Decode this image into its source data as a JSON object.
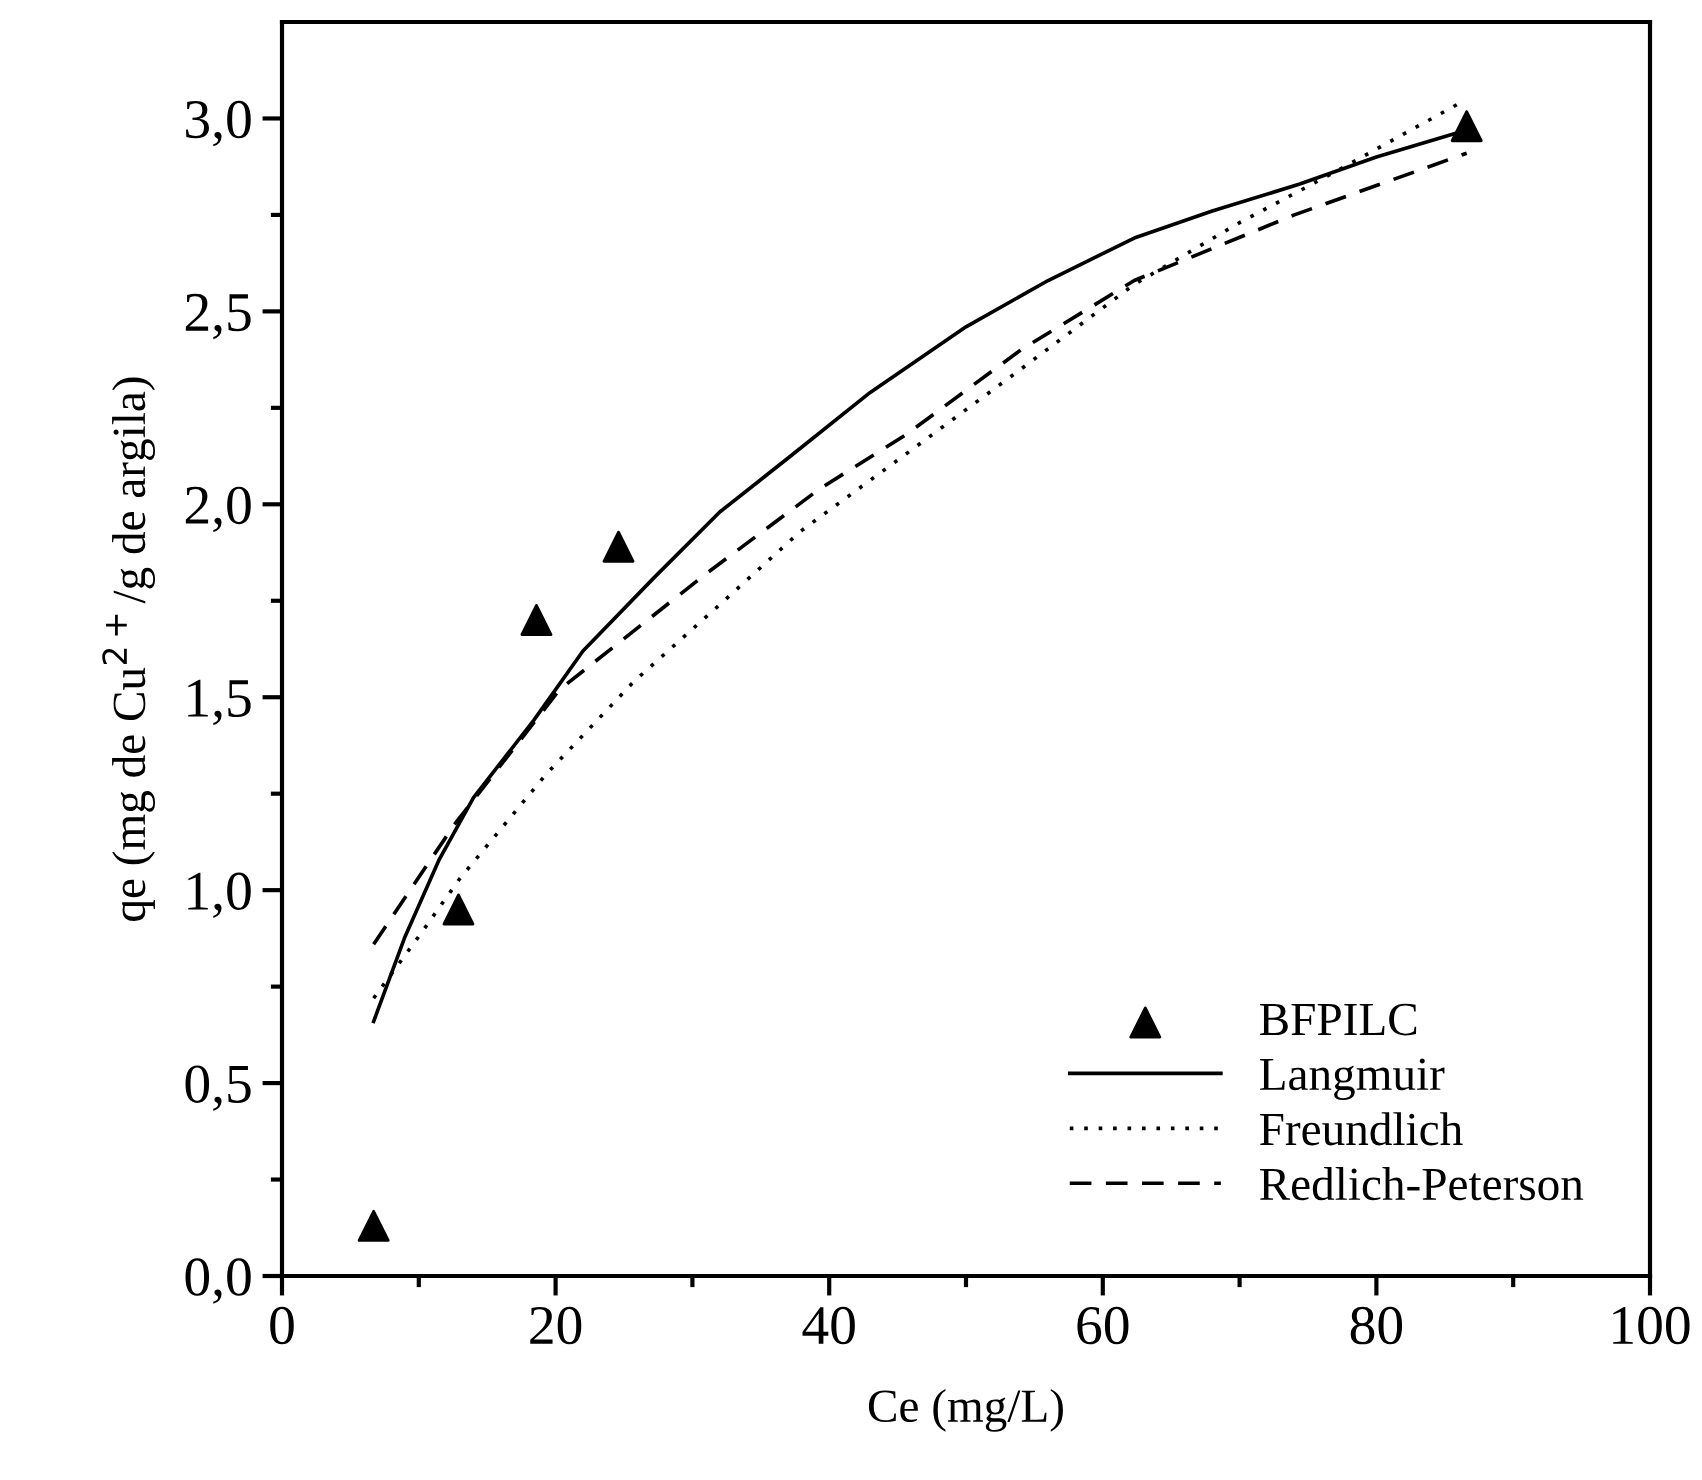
{
  "chart_data": {
    "type": "scatter",
    "xlabel": "Ce (mg/L)",
    "ylabel": "qe (mg de Cu$^{2+}$/g de argila)",
    "xlim": [
      0,
      100
    ],
    "ylim": [
      0,
      3.25
    ],
    "xticks": [
      0,
      {
        "value": 10,
        "label": null
      },
      20,
      {
        "value": 30,
        "label": null
      },
      40,
      {
        "value": 50,
        "label": null
      },
      60,
      {
        "value": 70,
        "label": null
      },
      80,
      {
        "value": 90,
        "label": null
      },
      100
    ],
    "yticks": [
      {
        "value": 0,
        "label": "0,0"
      },
      {
        "value": 0.25,
        "label": null
      },
      {
        "value": 0.5,
        "label": "0,5"
      },
      {
        "value": 0.75,
        "label": null
      },
      {
        "value": 1.0,
        "label": "1,0"
      },
      {
        "value": 1.25,
        "label": null
      },
      {
        "value": 1.5,
        "label": "1,5"
      },
      {
        "value": 1.75,
        "label": null
      },
      {
        "value": 2.0,
        "label": "2,0"
      },
      {
        "value": 2.25,
        "label": null
      },
      {
        "value": 2.5,
        "label": "2,5"
      },
      {
        "value": 2.75,
        "label": null
      },
      {
        "value": 3.0,
        "label": "3,0"
      }
    ],
    "grid": false,
    "legend": "bottom right",
    "series": [
      {
        "name": "BFPILC",
        "marker": "triangle",
        "color": "#000000",
        "x": [
          6.7,
          12.9,
          18.6,
          24.6,
          86.6
        ],
        "values": [
          0.13,
          0.95,
          1.7,
          1.89,
          2.98
        ]
      },
      {
        "name": "Langmuir",
        "type": "line",
        "line_style": "solid",
        "marker": "none",
        "color": "#000000",
        "x": [
          6.7,
          9,
          11.5,
          14,
          18.4,
          22,
          27.2,
          32,
          37,
          43,
          50,
          56,
          62.3,
          68,
          74.4,
          80,
          86.6
        ],
        "values": [
          0.66,
          0.88,
          1.08,
          1.24,
          1.44,
          1.62,
          1.81,
          1.98,
          2.12,
          2.29,
          2.46,
          2.58,
          2.69,
          2.76,
          2.83,
          2.9,
          2.97
        ]
      },
      {
        "name": "Freundlich",
        "type": "line",
        "line_style": "dotted",
        "marker": "none",
        "color": "#000000",
        "x": [
          6.7,
          10,
          13,
          19.3,
          25.7,
          32,
          37.9,
          45.6,
          54,
          62.3,
          70,
          76.9,
          86.1
        ],
        "values": [
          0.72,
          0.88,
          1.03,
          1.3,
          1.54,
          1.74,
          1.93,
          2.13,
          2.35,
          2.57,
          2.73,
          2.86,
          3.04
        ]
      },
      {
        "name": "Redlich-Peterson",
        "type": "line",
        "line_style": "dashed",
        "marker": "none",
        "color": "#000000",
        "x": [
          6.7,
          12.6,
          20.3,
          31,
          39.3,
          45.6,
          54,
          62.3,
          74,
          86.6
        ],
        "values": [
          0.86,
          1.17,
          1.52,
          1.82,
          2.04,
          2.18,
          2.4,
          2.58,
          2.75,
          2.91
        ]
      }
    ]
  }
}
